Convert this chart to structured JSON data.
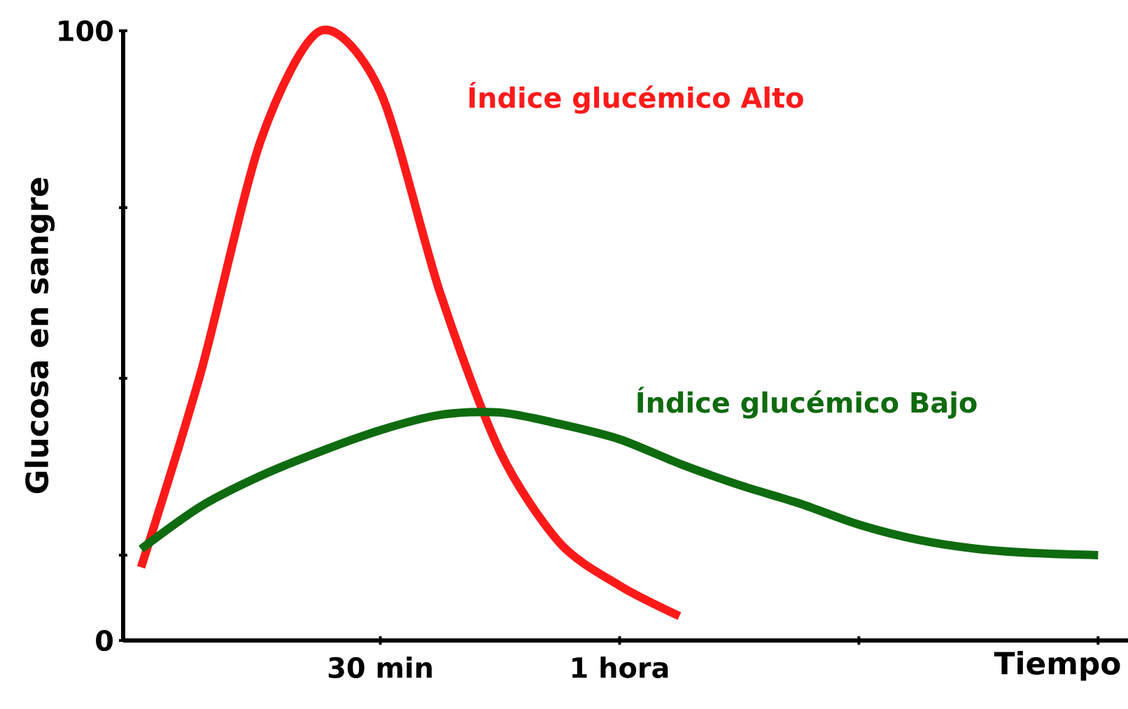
{
  "chart_data": {
    "type": "line",
    "xlabel": "Tiempo",
    "ylabel": "Glucosa en sangre",
    "categories": [
      null,
      null,
      null,
      null,
      "30 min",
      null,
      null,
      null,
      "1 hora",
      null,
      null,
      null,
      null,
      null,
      null,
      null,
      null
    ],
    "ylim": [
      0,
      100
    ],
    "yticks": [
      {
        "value": 0,
        "label": "0"
      },
      {
        "value": 14,
        "label": null
      },
      {
        "value": 43,
        "label": null
      },
      {
        "value": 71,
        "label": null
      },
      {
        "value": 100,
        "label": "100"
      }
    ],
    "grid": false,
    "marker": "none",
    "line_style": "solid",
    "series": [
      {
        "name": "Índice glucémico Alto",
        "color": "#ff1a1a",
        "values": [
          12,
          44,
          82,
          100,
          90,
          57,
          31,
          16,
          9,
          4,
          null,
          null,
          null,
          null,
          null,
          null,
          null
        ]
      },
      {
        "name": "Índice glucémico Bajo",
        "color": "#0f6b0f",
        "values": [
          15,
          22,
          27,
          31,
          34.5,
          37,
          37.4,
          35.5,
          33,
          29,
          25.5,
          22.5,
          19,
          16.5,
          15,
          14.3,
          14
        ]
      }
    ]
  }
}
